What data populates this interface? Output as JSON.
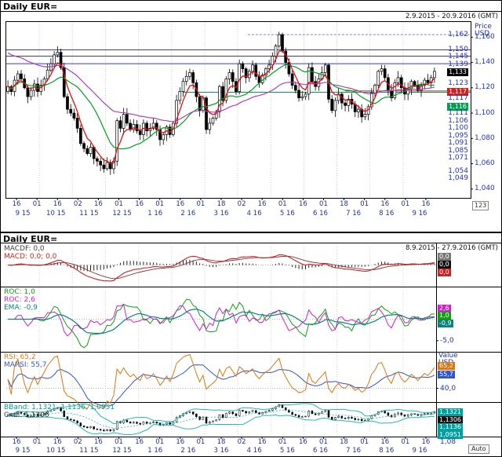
{
  "top_chart": {
    "title": "Daily EUR=",
    "date_range": "2.9.2015 - 20.9.2016 (GMT)",
    "axis_title_line1": "Price",
    "axis_title_line2": "USD",
    "page_box": "123",
    "y_ticks": [
      {
        "text": "1,160",
        "value": 1.16
      },
      {
        "text": "1,140",
        "value": 1.14
      },
      {
        "text": "1,120",
        "value": 1.12
      },
      {
        "text": "1,100",
        "value": 1.1
      },
      {
        "text": "1,080",
        "value": 1.08
      },
      {
        "text": "1,060",
        "value": 1.06
      },
      {
        "text": "1,040",
        "value": 1.04
      }
    ],
    "price_markers": [
      {
        "text": "1,162",
        "value": 1.162,
        "style": "plain"
      },
      {
        "text": "1,150",
        "value": 1.15,
        "style": "plain"
      },
      {
        "text": "1,145",
        "value": 1.145,
        "style": "plain"
      },
      {
        "text": "1,139",
        "value": 1.139,
        "style": "plain"
      },
      {
        "text": "1,133",
        "value": 1.133,
        "style": "black"
      },
      {
        "text": "1,123",
        "value": 1.123,
        "style": "plain"
      },
      {
        "text": "1,117",
        "value": 1.1175,
        "style": "red"
      },
      {
        "text": "1,117",
        "value": 1.117,
        "style": "plain"
      },
      {
        "text": "1,116",
        "value": 1.116,
        "style": "green"
      },
      {
        "text": "1,111",
        "value": 1.111,
        "style": "plain"
      },
      {
        "text": "1,106",
        "value": 1.106,
        "style": "plain"
      },
      {
        "text": "1,100",
        "value": 1.1,
        "style": "plain"
      },
      {
        "text": "1,095",
        "value": 1.095,
        "style": "plain"
      },
      {
        "text": "1,091",
        "value": 1.091,
        "style": "plain"
      },
      {
        "text": "1,085",
        "value": 1.085,
        "style": "plain"
      },
      {
        "text": "1,071",
        "value": 1.071,
        "style": "plain"
      },
      {
        "text": "1,054",
        "value": 1.054,
        "style": "plain"
      },
      {
        "text": "1,049",
        "value": 1.049,
        "style": "plain"
      }
    ],
    "levels": [
      {
        "value": 1.162,
        "color": "#8080cc",
        "from": 0.52,
        "to": 1,
        "dash": true
      },
      {
        "value": 1.15,
        "color": "#3a3ab8",
        "from": 0,
        "to": 1,
        "dash": false
      },
      {
        "value": 1.145,
        "color": "#3a3ab8",
        "from": 0,
        "to": 1,
        "dash": false
      },
      {
        "value": 1.139,
        "color": "#3a3ab8",
        "from": 0,
        "to": 1,
        "dash": false
      },
      {
        "value": 1.1165,
        "color": "#00a050",
        "from": 0.38,
        "to": 1,
        "dash": false
      },
      {
        "value": 1.1175,
        "color": "#cc2222",
        "from": 0.73,
        "to": 1,
        "dash": false
      }
    ],
    "x_days": [
      "16",
      "01",
      "16",
      "02",
      "16",
      "01",
      "16",
      "01",
      "16",
      "01",
      "18",
      "02",
      "16",
      "01",
      "16",
      "01",
      "18",
      "01",
      "16",
      "01",
      "16"
    ],
    "x_months": [
      "9 15",
      "10 15",
      "11 15",
      "12 15",
      "1 16",
      "2 16",
      "3 16",
      "4 16",
      "5 16",
      "6 16",
      "7 16",
      "8 16",
      "9 16"
    ]
  },
  "bottom_chart": {
    "title": "Daily EUR=",
    "date_range": "8.9.2015 - 27.9.2016 (GMT)",
    "axis_title_line1": "Value",
    "axis_title_line2": "USD",
    "auto_label": "Auto",
    "subcharts": {
      "macd": {
        "legend": [
          {
            "text": "MACDF: 0,0",
            "color": "#444444"
          },
          {
            "text": "MACD: 0,0; 0,0",
            "color": "#cc2222"
          }
        ],
        "boxes": [
          {
            "text": "0,0",
            "bg": "#777777"
          },
          {
            "text": "0,0",
            "bg": "#111111"
          },
          {
            "text": "0,0",
            "bg": "#cc2222"
          }
        ]
      },
      "roc": {
        "legend": [
          {
            "text": "ROC: 1,0",
            "color": "#11a011"
          },
          {
            "text": "ROC: 2,6",
            "color": "#cc22cc"
          },
          {
            "text": "EMA: -0,9",
            "color": "#0a8080"
          }
        ],
        "boxes": [
          {
            "text": "2,6",
            "bg": "#cc22cc",
            "value": 2.6
          },
          {
            "text": "1,0",
            "bg": "#11a011",
            "value": 1.0
          },
          {
            "text": "-0,9",
            "bg": "#0a8080",
            "value": -0.9
          }
        ],
        "axis_label": {
          "text": "-5,0",
          "value": -5
        }
      },
      "rsi": {
        "legend": [
          {
            "text": "RSI: 65,2",
            "color": "#dd7711"
          },
          {
            "text": "MARSI: 55,7",
            "color": "#3355cc"
          }
        ],
        "boxes": [
          {
            "text": "65,2",
            "bg": "#dd7711",
            "value": 65.2
          },
          {
            "text": "55,7",
            "bg": "#3355cc",
            "value": 55.7
          }
        ],
        "axis_label": {
          "text": "40,0",
          "value": 40
        }
      },
      "bband": {
        "legend": [
          {
            "text": "BBand: 1,1321, 1,1136, 1,0951",
            "color": "#00a0a0"
          },
          {
            "text": "Cndl: 1,1306",
            "color": "#333333"
          }
        ],
        "boxes": [
          {
            "text": "1,1321",
            "bg": "#00a0a0",
            "value": 1.1321
          },
          {
            "text": "1,1306",
            "bg": "#111111",
            "value": 1.1306
          },
          {
            "text": "1,1136",
            "bg": "#00a0a0",
            "value": 1.1136
          },
          {
            "text": "1,0951",
            "bg": "#00a0a0",
            "value": 1.0951
          }
        ],
        "axis_label": {
          "text": "1,08",
          "value": 1.08
        }
      }
    },
    "x_days": [
      "16",
      "01",
      "16",
      "02",
      "16",
      "01",
      "16",
      "01",
      "16",
      "01",
      "18",
      "02",
      "16",
      "01",
      "16",
      "01",
      "18",
      "01",
      "16",
      "01",
      "16"
    ],
    "x_months": [
      "9 15",
      "10 15",
      "11 15",
      "12 15",
      "1 16",
      "2 16",
      "3 16",
      "4 16",
      "5 16",
      "6 16",
      "7 16",
      "8 16",
      "9 16"
    ]
  },
  "chart_data": {
    "type": "candlestick",
    "symbol": "EUR=",
    "interval": "Daily",
    "title": "Daily EUR=",
    "top_date_range": "2.9.2015 - 20.9.2016 (GMT)",
    "bottom_date_range": "8.9.2015 - 27.9.2016 (GMT)",
    "y_axis_title": "Price USD",
    "top_range": [
      1.033,
      1.172
    ],
    "y_ticks": [
      1.16,
      1.14,
      1.12,
      1.1,
      1.08,
      1.06,
      1.04
    ],
    "months": [
      "9 15",
      "10 15",
      "11 15",
      "12 15",
      "1 16",
      "2 16",
      "3 16",
      "4 16",
      "5 16",
      "6 16",
      "7 16",
      "8 16",
      "9 16"
    ],
    "month_start_indices": [
      0,
      10,
      20,
      30,
      40,
      50,
      60,
      70,
      80,
      90,
      100,
      110,
      120
    ],
    "closes": [
      1.121,
      1.117,
      1.126,
      1.131,
      1.127,
      1.12,
      1.113,
      1.118,
      1.123,
      1.117,
      1.122,
      1.127,
      1.134,
      1.139,
      1.146,
      1.148,
      1.136,
      1.113,
      1.103,
      1.1,
      1.096,
      1.088,
      1.076,
      1.072,
      1.068,
      1.073,
      1.064,
      1.062,
      1.059,
      1.056,
      1.061,
      1.056,
      1.062,
      1.094,
      1.088,
      1.099,
      1.092,
      1.087,
      1.091,
      1.086,
      1.083,
      1.092,
      1.086,
      1.088,
      1.092,
      1.087,
      1.079,
      1.083,
      1.089,
      1.083,
      1.092,
      1.11,
      1.117,
      1.125,
      1.129,
      1.132,
      1.124,
      1.113,
      1.102,
      1.112,
      1.087,
      1.092,
      1.096,
      1.101,
      1.121,
      1.11,
      1.127,
      1.132,
      1.125,
      1.117,
      1.139,
      1.135,
      1.128,
      1.133,
      1.138,
      1.129,
      1.124,
      1.13,
      1.135,
      1.138,
      1.145,
      1.153,
      1.162,
      1.149,
      1.14,
      1.131,
      1.122,
      1.118,
      1.112,
      1.113,
      1.115,
      1.136,
      1.125,
      1.121,
      1.127,
      1.132,
      1.138,
      1.111,
      1.102,
      1.11,
      1.115,
      1.108,
      1.106,
      1.111,
      1.107,
      1.101,
      1.103,
      1.097,
      1.099,
      1.105,
      1.116,
      1.122,
      1.133,
      1.135,
      1.128,
      1.118,
      1.112,
      1.124,
      1.128,
      1.12,
      1.115,
      1.119,
      1.125,
      1.122,
      1.118,
      1.122,
      1.126,
      1.124,
      1.128,
      1.133
    ],
    "last_close": 1.133,
    "overlays": {
      "ma_fast": {
        "type": "ema",
        "period": 5,
        "color": "#e01010"
      },
      "ma_mid": {
        "type": "sma",
        "period": 15,
        "color": "#00a020"
      },
      "ma_slow": {
        "type": "ema",
        "period": 40,
        "init": 1.149,
        "color": "#aa44bb"
      }
    },
    "indicators": {
      "macd": {
        "fast": 12,
        "slow": 26,
        "signal": 9,
        "last_macdf": 0.0,
        "last_macd": 0.0,
        "last_signal": 0.0
      },
      "roc": {
        "fast": 3,
        "slow": 8,
        "ema": 12,
        "last_roc_fast": 2.6,
        "last_roc_slow": 1.0,
        "last_ema": -0.9,
        "axis_label": -5.0
      },
      "rsi": {
        "period": 9,
        "marsi_period": 9,
        "last_rsi": 65.2,
        "last_marsi": 55.7,
        "range": [
          25,
          80
        ],
        "axis_label": 40.0
      },
      "bband": {
        "period": 12,
        "stddev": 2,
        "last_upper": 1.1321,
        "last_mid": 1.1136,
        "last_lower": 1.0951,
        "last_close": 1.1306,
        "axis_label": 1.08
      }
    }
  }
}
